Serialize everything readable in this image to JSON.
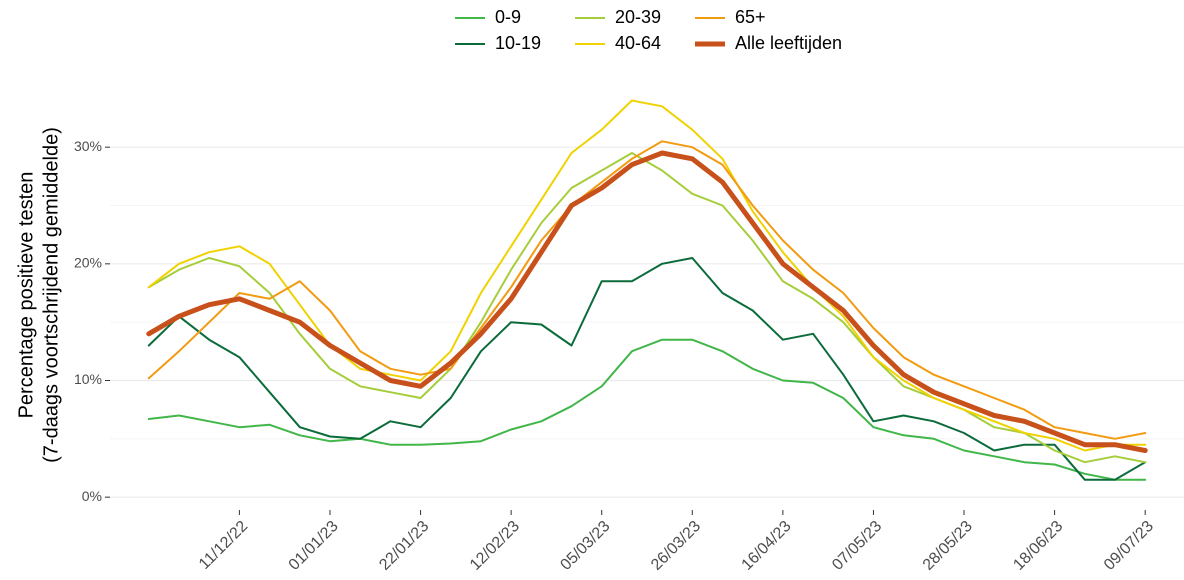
{
  "chart_data": {
    "type": "line",
    "ylabel": [
      "Percentage positieve testen",
      "(7-daags voortschrijdend gemiddelde)"
    ],
    "legend": "top",
    "grid": true,
    "x": [
      "2022-11-20",
      "2022-11-27",
      "2022-12-04",
      "2022-12-11",
      "2022-12-18",
      "2022-12-25",
      "2023-01-01",
      "2023-01-08",
      "2023-01-15",
      "2023-01-22",
      "2023-01-29",
      "2023-02-05",
      "2023-02-12",
      "2023-02-19",
      "2023-02-26",
      "2023-03-05",
      "2023-03-12",
      "2023-03-19",
      "2023-03-26",
      "2023-04-02",
      "2023-04-09",
      "2023-04-16",
      "2023-04-23",
      "2023-04-30",
      "2023-05-07",
      "2023-05-14",
      "2023-05-21",
      "2023-05-28",
      "2023-06-04",
      "2023-06-11",
      "2023-06-18",
      "2023-06-25",
      "2023-07-02",
      "2023-07-09"
    ],
    "xlim": [
      "2022-11-11",
      "2023-07-18"
    ],
    "xticks": [
      {
        "value": "2022-12-11",
        "label": "11/12/22"
      },
      {
        "value": "2023-01-01",
        "label": "01/01/23"
      },
      {
        "value": "2023-01-22",
        "label": "22/01/23"
      },
      {
        "value": "2023-02-12",
        "label": "12/02/23"
      },
      {
        "value": "2023-03-05",
        "label": "05/03/23"
      },
      {
        "value": "2023-03-26",
        "label": "26/03/23"
      },
      {
        "value": "2023-04-16",
        "label": "16/04/23"
      },
      {
        "value": "2023-05-07",
        "label": "07/05/23"
      },
      {
        "value": "2023-05-28",
        "label": "28/05/23"
      },
      {
        "value": "2023-06-18",
        "label": "18/06/23"
      },
      {
        "value": "2023-07-09",
        "label": "09/07/23"
      }
    ],
    "ylim": [
      -1.1,
      34.9
    ],
    "yticks": [
      {
        "value": 0,
        "label": "0%"
      },
      {
        "value": 10,
        "label": "10%"
      },
      {
        "value": 20,
        "label": "20%"
      },
      {
        "value": 30,
        "label": "30%"
      }
    ],
    "y_minor_ticks": [
      5,
      15,
      25
    ],
    "series": [
      {
        "name": "0-9",
        "color": "#41b649",
        "width": 2,
        "values": [
          6.7,
          7.0,
          6.5,
          6.0,
          6.2,
          5.3,
          4.8,
          5.0,
          4.5,
          4.5,
          4.6,
          4.8,
          5.8,
          6.5,
          7.8,
          9.5,
          12.5,
          13.5,
          13.5,
          12.5,
          11.0,
          10.0,
          9.8,
          8.5,
          6.0,
          5.3,
          5.0,
          4.0,
          3.5,
          3.0,
          2.8,
          2.0,
          1.5,
          1.5
        ]
      },
      {
        "name": "10-19",
        "color": "#0b6b3a",
        "width": 2,
        "values": [
          13.0,
          15.5,
          13.5,
          12.0,
          9.0,
          6.0,
          5.2,
          5.0,
          6.5,
          6.0,
          8.5,
          12.5,
          15.0,
          14.8,
          13.0,
          18.5,
          18.5,
          20.0,
          20.5,
          17.5,
          16.0,
          13.5,
          14.0,
          10.5,
          6.5,
          7.0,
          6.5,
          5.5,
          4.0,
          4.5,
          4.5,
          1.5,
          1.5,
          3.0
        ]
      },
      {
        "name": "20-39",
        "color": "#a6cd3a",
        "width": 2,
        "values": [
          18.0,
          19.5,
          20.5,
          19.8,
          17.5,
          14.0,
          11.0,
          9.5,
          9.0,
          8.5,
          11.0,
          15.0,
          19.5,
          23.5,
          26.5,
          28.0,
          29.5,
          28.0,
          26.0,
          25.0,
          22.0,
          18.5,
          17.0,
          15.0,
          12.0,
          9.5,
          8.5,
          7.5,
          6.0,
          5.5,
          4.0,
          3.0,
          3.5,
          3.0
        ]
      },
      {
        "name": "40-64",
        "color": "#f0d200",
        "width": 2,
        "values": [
          18.0,
          20.0,
          21.0,
          21.5,
          20.0,
          16.5,
          13.0,
          11.0,
          10.5,
          10.0,
          12.5,
          17.5,
          21.5,
          25.5,
          29.5,
          31.5,
          34.0,
          33.5,
          31.5,
          29.0,
          24.5,
          21.0,
          18.0,
          15.5,
          12.0,
          10.0,
          8.5,
          7.5,
          6.5,
          5.5,
          5.0,
          4.0,
          4.5,
          4.5
        ]
      },
      {
        "name": "65+",
        "color": "#f29a10",
        "width": 2,
        "values": [
          10.2,
          12.5,
          15.0,
          17.5,
          17.0,
          18.5,
          16.0,
          12.5,
          11.0,
          10.5,
          11.0,
          14.5,
          18.0,
          22.0,
          25.0,
          27.0,
          29.0,
          30.5,
          30.0,
          28.5,
          25.0,
          22.0,
          19.5,
          17.5,
          14.5,
          12.0,
          10.5,
          9.5,
          8.5,
          7.5,
          6.0,
          5.5,
          5.0,
          5.5
        ]
      },
      {
        "name": "Alle leeftijden",
        "color": "#c8501a",
        "width": 5,
        "values": [
          14.0,
          15.5,
          16.5,
          17.0,
          16.0,
          15.0,
          13.0,
          11.5,
          10.0,
          9.5,
          11.5,
          14.0,
          17.0,
          21.0,
          25.0,
          26.5,
          28.5,
          29.5,
          29.0,
          27.0,
          23.5,
          20.0,
          18.0,
          16.0,
          13.0,
          10.5,
          9.0,
          8.0,
          7.0,
          6.5,
          5.5,
          4.5,
          4.5,
          4.0
        ]
      }
    ]
  }
}
